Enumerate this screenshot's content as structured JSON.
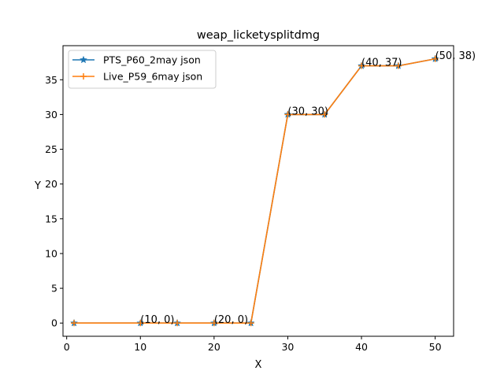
{
  "chart_data": {
    "type": "line",
    "title": "weap_licketysplitdmg",
    "xlabel": "X",
    "ylabel": "Y",
    "xlim": [
      -0.5,
      52.5
    ],
    "ylim": [
      -1.9,
      39.9
    ],
    "xticks": [
      0,
      10,
      20,
      30,
      40,
      50
    ],
    "yticks": [
      0,
      5,
      10,
      15,
      20,
      25,
      30,
      35
    ],
    "grid": false,
    "legend_position": "top-left",
    "x": [
      1,
      10,
      15,
      20,
      25,
      30,
      35,
      40,
      45,
      50
    ],
    "series": [
      {
        "name": "PTS_P60_2may json",
        "color": "#1f77b4",
        "marker": "star",
        "values": [
          0,
          0,
          0,
          0,
          0,
          30,
          30,
          37,
          37,
          38
        ]
      },
      {
        "name": "Live_P59_6may json",
        "color": "#ff7f0e",
        "marker": "plus",
        "values": [
          0,
          0,
          0,
          0,
          0,
          30,
          30,
          37,
          37,
          38
        ]
      }
    ],
    "annotations": [
      {
        "x": 10,
        "y": 0,
        "text": "(10, 0)"
      },
      {
        "x": 20,
        "y": 0,
        "text": "(20, 0)"
      },
      {
        "x": 30,
        "y": 30,
        "text": "(30, 30)"
      },
      {
        "x": 40,
        "y": 37,
        "text": "(40, 37)"
      },
      {
        "x": 50,
        "y": 38,
        "text": "(50, 38)"
      }
    ]
  }
}
